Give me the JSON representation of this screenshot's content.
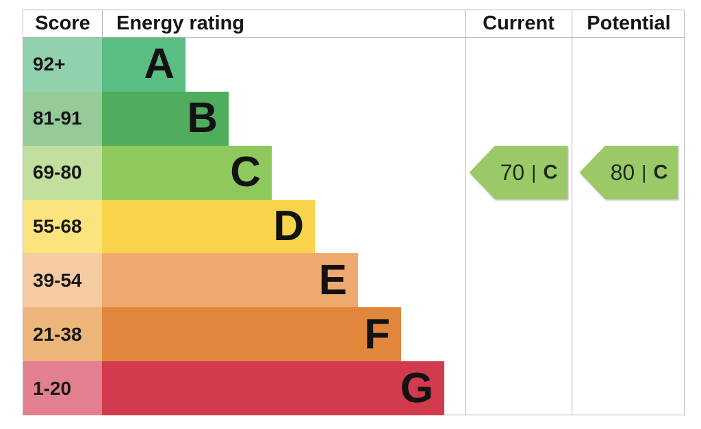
{
  "header": {
    "score": "Score",
    "energy_rating": "Energy rating",
    "current": "Current",
    "potential": "Potential"
  },
  "bands": [
    {
      "score": "92+",
      "letter": "A",
      "color": "#5abd84",
      "score_color": "#92d1ae"
    },
    {
      "score": "81-91",
      "letter": "B",
      "color": "#50ad5e",
      "score_color": "#94cb98"
    },
    {
      "score": "69-80",
      "letter": "C",
      "color": "#8fc85d",
      "score_color": "#c1df9d"
    },
    {
      "score": "55-68",
      "letter": "D",
      "color": "#f8d44b",
      "score_color": "#fbe47e"
    },
    {
      "score": "39-54",
      "letter": "E",
      "color": "#efa96e",
      "score_color": "#f6cba1"
    },
    {
      "score": "21-38",
      "letter": "F",
      "color": "#e0873c",
      "score_color": "#ecb67a"
    },
    {
      "score": "1-20",
      "letter": "G",
      "color": "#d23a4d",
      "score_color": "#e2808f"
    }
  ],
  "current": {
    "value": "70",
    "separator": "|",
    "letter": "C",
    "arrow_color": "#9cc968"
  },
  "potential": {
    "value": "80",
    "separator": "|",
    "letter": "C",
    "arrow_color": "#9cc968"
  },
  "chart_data": {
    "type": "bar",
    "title": "Energy rating",
    "columns": [
      "Score",
      "Energy rating",
      "Current",
      "Potential"
    ],
    "categories": [
      "A",
      "B",
      "C",
      "D",
      "E",
      "F",
      "G"
    ],
    "score_ranges": [
      "92+",
      "81-91",
      "69-80",
      "55-68",
      "39-54",
      "21-38",
      "1-20"
    ],
    "band_colors": [
      "#5abd84",
      "#50ad5e",
      "#8fc85d",
      "#f8d44b",
      "#efa96e",
      "#e0873c",
      "#d23a4d"
    ],
    "bar_relative_lengths": [
      1,
      1.52,
      2.03,
      2.55,
      3.07,
      3.58,
      4.1
    ],
    "current": {
      "score": 70,
      "rating": "C",
      "band_row": "C"
    },
    "potential": {
      "score": 80,
      "rating": "C",
      "band_row": "C"
    },
    "legend_position": "none",
    "grid": false
  }
}
